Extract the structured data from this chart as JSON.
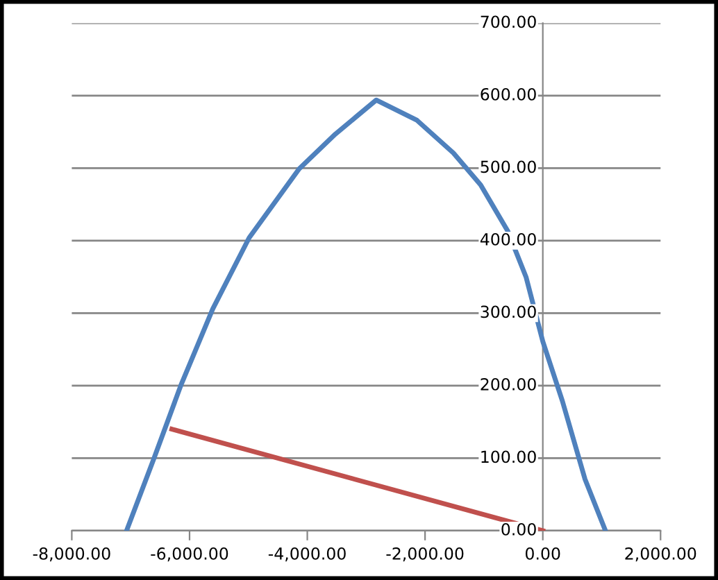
{
  "chart_data": {
    "type": "line",
    "xlim": [
      -8000,
      2000
    ],
    "ylim": [
      0,
      700
    ],
    "xticks": [
      {
        "value": -8000,
        "label": "-8,000.00"
      },
      {
        "value": -6000,
        "label": "-6,000.00"
      },
      {
        "value": -4000,
        "label": "-4,000.00"
      },
      {
        "value": -2000,
        "label": "-2,000.00"
      },
      {
        "value": 0,
        "label": "0.00"
      },
      {
        "value": 2000,
        "label": "2,000.00"
      }
    ],
    "yticks": [
      {
        "value": 0,
        "label": "0.00"
      },
      {
        "value": 100,
        "label": "100.00"
      },
      {
        "value": 200,
        "label": "200.00"
      },
      {
        "value": 300,
        "label": "300.00"
      },
      {
        "value": 400,
        "label": "400.00"
      },
      {
        "value": 500,
        "label": "500.00"
      },
      {
        "value": 600,
        "label": "600.00"
      },
      {
        "value": 700,
        "label": "700.00"
      }
    ],
    "grid": "y",
    "marker": "none",
    "line_style": "solid",
    "series": [
      {
        "color": "#4f81bd",
        "x": [
          -7070,
          -6608,
          -6145,
          -5605,
          -4988,
          -4140,
          -3524,
          -2830,
          -2136,
          -1519,
          -1056,
          -594,
          -285,
          0,
          332,
          717,
          1064
        ],
        "values": [
          0,
          99,
          201,
          306,
          404,
          499,
          547,
          594,
          566,
          521,
          477,
          413,
          350,
          261,
          179,
          71,
          0
        ]
      },
      {
        "color": "#c0504d",
        "x": [
          -6300,
          0
        ],
        "values": [
          140,
          0
        ]
      }
    ]
  }
}
